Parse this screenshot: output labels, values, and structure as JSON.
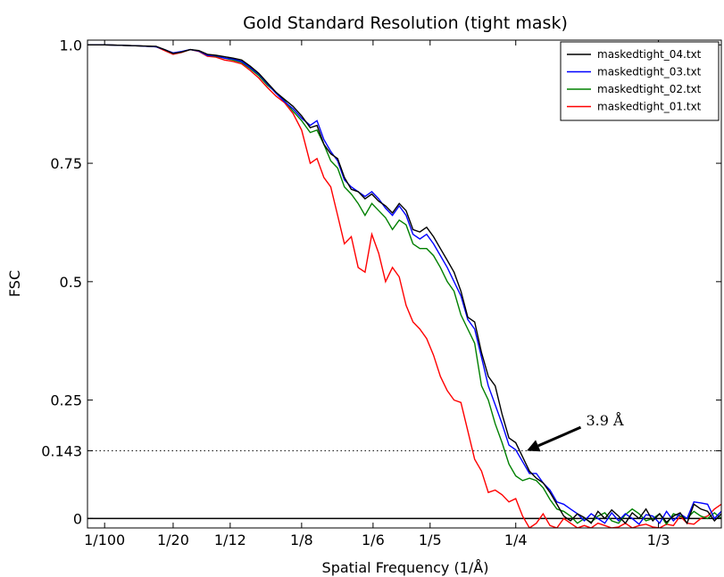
{
  "chart_data": {
    "type": "line",
    "title": "Gold Standard Resolution (tight mask)",
    "xlabel": "Spatial Frequency (1/Å)",
    "ylabel": "FSC",
    "xlim": [
      0.0,
      0.37
    ],
    "ylim": [
      -0.02,
      1.01
    ],
    "xticks": [
      {
        "value": 0.01,
        "label": "1/100"
      },
      {
        "value": 0.05,
        "label": "1/20"
      },
      {
        "value": 0.0833,
        "label": "1/12"
      },
      {
        "value": 0.125,
        "label": "1/8"
      },
      {
        "value": 0.1667,
        "label": "1/6"
      },
      {
        "value": 0.2,
        "label": "1/5"
      },
      {
        "value": 0.25,
        "label": "1/4"
      },
      {
        "value": 0.3333,
        "label": "1/3"
      }
    ],
    "yticks": [
      {
        "value": 0,
        "label": "0"
      },
      {
        "value": 0.143,
        "label": "0.143"
      },
      {
        "value": 0.25,
        "label": "0.25"
      },
      {
        "value": 0.5,
        "label": "0.5"
      },
      {
        "value": 0.75,
        "label": "0.75"
      },
      {
        "value": 1.0,
        "label": "1.0"
      }
    ],
    "threshold": 0.143,
    "zero_line": 0,
    "grid": false,
    "legend_position": "top-right",
    "annotation": {
      "text": "3.9 Å",
      "x": 0.2564,
      "y": 0.143,
      "text_x": 0.29,
      "text_y": 0.2
    },
    "series": [
      {
        "name": "maskedtight_04.txt",
        "color": "#000000",
        "x": [
          0.0,
          0.01,
          0.02,
          0.03,
          0.04,
          0.045,
          0.05,
          0.055,
          0.06,
          0.065,
          0.07,
          0.075,
          0.08,
          0.085,
          0.09,
          0.095,
          0.1,
          0.105,
          0.11,
          0.115,
          0.12,
          0.125,
          0.13,
          0.134,
          0.138,
          0.142,
          0.146,
          0.15,
          0.154,
          0.158,
          0.162,
          0.166,
          0.17,
          0.174,
          0.178,
          0.182,
          0.186,
          0.19,
          0.194,
          0.198,
          0.202,
          0.206,
          0.21,
          0.214,
          0.218,
          0.222,
          0.226,
          0.23,
          0.234,
          0.238,
          0.242,
          0.246,
          0.25,
          0.254,
          0.258,
          0.262,
          0.266,
          0.27,
          0.274,
          0.278,
          0.282,
          0.286,
          0.29,
          0.294,
          0.298,
          0.302,
          0.306,
          0.31,
          0.314,
          0.318,
          0.322,
          0.326,
          0.33,
          0.334,
          0.338,
          0.342,
          0.346,
          0.35,
          0.354,
          0.358,
          0.362,
          0.366,
          0.37
        ],
        "y": [
          1.0,
          1.0,
          0.999,
          0.998,
          0.997,
          0.99,
          0.982,
          0.985,
          0.99,
          0.988,
          0.98,
          0.978,
          0.975,
          0.972,
          0.968,
          0.955,
          0.94,
          0.92,
          0.9,
          0.885,
          0.87,
          0.85,
          0.825,
          0.83,
          0.79,
          0.77,
          0.76,
          0.72,
          0.695,
          0.69,
          0.675,
          0.685,
          0.67,
          0.66,
          0.645,
          0.665,
          0.65,
          0.61,
          0.605,
          0.615,
          0.595,
          0.57,
          0.545,
          0.52,
          0.48,
          0.425,
          0.415,
          0.35,
          0.3,
          0.28,
          0.22,
          0.17,
          0.16,
          0.13,
          0.1,
          0.085,
          0.075,
          0.055,
          0.03,
          0.005,
          -0.005,
          0.01,
          0.002,
          -0.01,
          0.015,
          0.0,
          0.018,
          0.005,
          -0.01,
          0.012,
          0.0,
          0.02,
          -0.005,
          0.01,
          -0.008,
          0.005,
          0.012,
          -0.01,
          0.03,
          0.02,
          0.015,
          -0.005,
          0.01
        ]
      },
      {
        "name": "maskedtight_03.txt",
        "color": "#0000ff",
        "x": [
          0.0,
          0.01,
          0.02,
          0.03,
          0.04,
          0.045,
          0.05,
          0.055,
          0.06,
          0.065,
          0.07,
          0.075,
          0.08,
          0.085,
          0.09,
          0.095,
          0.1,
          0.105,
          0.11,
          0.115,
          0.12,
          0.125,
          0.13,
          0.134,
          0.138,
          0.142,
          0.146,
          0.15,
          0.154,
          0.158,
          0.162,
          0.166,
          0.17,
          0.174,
          0.178,
          0.182,
          0.186,
          0.19,
          0.194,
          0.198,
          0.202,
          0.206,
          0.21,
          0.214,
          0.218,
          0.222,
          0.226,
          0.23,
          0.234,
          0.238,
          0.242,
          0.246,
          0.25,
          0.254,
          0.258,
          0.262,
          0.266,
          0.27,
          0.274,
          0.278,
          0.282,
          0.286,
          0.29,
          0.294,
          0.298,
          0.302,
          0.306,
          0.31,
          0.314,
          0.318,
          0.322,
          0.326,
          0.33,
          0.334,
          0.338,
          0.342,
          0.346,
          0.35,
          0.354,
          0.358,
          0.362,
          0.366,
          0.37
        ],
        "y": [
          1.0,
          1.0,
          0.999,
          0.998,
          0.996,
          0.99,
          0.983,
          0.986,
          0.99,
          0.987,
          0.978,
          0.977,
          0.972,
          0.97,
          0.965,
          0.952,
          0.938,
          0.918,
          0.898,
          0.88,
          0.865,
          0.845,
          0.83,
          0.84,
          0.8,
          0.775,
          0.755,
          0.715,
          0.7,
          0.69,
          0.68,
          0.69,
          0.675,
          0.655,
          0.64,
          0.66,
          0.64,
          0.6,
          0.59,
          0.6,
          0.58,
          0.555,
          0.53,
          0.5,
          0.47,
          0.42,
          0.4,
          0.34,
          0.28,
          0.24,
          0.2,
          0.155,
          0.145,
          0.12,
          0.095,
          0.095,
          0.075,
          0.06,
          0.035,
          0.03,
          0.02,
          0.01,
          -0.005,
          0.01,
          0.0,
          -0.01,
          0.012,
          -0.005,
          0.01,
          0.0,
          -0.012,
          0.008,
          0.005,
          -0.01,
          0.015,
          -0.005,
          0.01,
          0.0,
          0.035,
          0.033,
          0.03,
          0.0,
          0.015
        ]
      },
      {
        "name": "maskedtight_02.txt",
        "color": "#008000",
        "x": [
          0.0,
          0.01,
          0.02,
          0.03,
          0.04,
          0.045,
          0.05,
          0.055,
          0.06,
          0.065,
          0.07,
          0.075,
          0.08,
          0.085,
          0.09,
          0.095,
          0.1,
          0.105,
          0.11,
          0.115,
          0.12,
          0.125,
          0.13,
          0.134,
          0.138,
          0.142,
          0.146,
          0.15,
          0.154,
          0.158,
          0.162,
          0.166,
          0.17,
          0.174,
          0.178,
          0.182,
          0.186,
          0.19,
          0.194,
          0.198,
          0.202,
          0.206,
          0.21,
          0.214,
          0.218,
          0.222,
          0.226,
          0.23,
          0.234,
          0.238,
          0.242,
          0.246,
          0.25,
          0.254,
          0.258,
          0.262,
          0.266,
          0.27,
          0.274,
          0.278,
          0.282,
          0.286,
          0.29,
          0.294,
          0.298,
          0.302,
          0.306,
          0.31,
          0.314,
          0.318,
          0.322,
          0.326,
          0.33,
          0.334,
          0.338,
          0.342,
          0.346,
          0.35,
          0.354,
          0.358,
          0.362,
          0.366,
          0.37
        ],
        "y": [
          1.0,
          1.0,
          0.999,
          0.998,
          0.996,
          0.99,
          0.982,
          0.985,
          0.99,
          0.987,
          0.978,
          0.976,
          0.972,
          0.968,
          0.963,
          0.95,
          0.935,
          0.915,
          0.9,
          0.882,
          0.86,
          0.84,
          0.815,
          0.82,
          0.79,
          0.755,
          0.74,
          0.7,
          0.685,
          0.665,
          0.64,
          0.665,
          0.65,
          0.635,
          0.61,
          0.63,
          0.62,
          0.58,
          0.57,
          0.57,
          0.555,
          0.53,
          0.5,
          0.48,
          0.43,
          0.4,
          0.37,
          0.28,
          0.25,
          0.2,
          0.16,
          0.115,
          0.09,
          0.08,
          0.085,
          0.08,
          0.065,
          0.04,
          0.02,
          0.015,
          0.005,
          -0.01,
          0.0,
          -0.008,
          0.005,
          0.012,
          -0.005,
          -0.01,
          0.008,
          0.02,
          0.01,
          -0.005,
          0.0,
          0.01,
          -0.012,
          0.01,
          0.005,
          0.0,
          0.015,
          0.005,
          0.0,
          0.012,
          0.0
        ]
      },
      {
        "name": "maskedtight_01.txt",
        "color": "#ff0000",
        "x": [
          0.0,
          0.01,
          0.02,
          0.03,
          0.04,
          0.045,
          0.05,
          0.055,
          0.06,
          0.065,
          0.07,
          0.075,
          0.08,
          0.085,
          0.09,
          0.095,
          0.1,
          0.105,
          0.11,
          0.115,
          0.12,
          0.125,
          0.13,
          0.134,
          0.138,
          0.142,
          0.146,
          0.15,
          0.154,
          0.158,
          0.162,
          0.166,
          0.17,
          0.174,
          0.178,
          0.182,
          0.186,
          0.19,
          0.194,
          0.198,
          0.202,
          0.206,
          0.21,
          0.214,
          0.218,
          0.222,
          0.226,
          0.23,
          0.234,
          0.238,
          0.242,
          0.246,
          0.25,
          0.254,
          0.258,
          0.262,
          0.266,
          0.27,
          0.274,
          0.278,
          0.282,
          0.286,
          0.29,
          0.294,
          0.298,
          0.302,
          0.306,
          0.31,
          0.314,
          0.318,
          0.322,
          0.326,
          0.33,
          0.334,
          0.338,
          0.342,
          0.346,
          0.35,
          0.354,
          0.358,
          0.362,
          0.366,
          0.37
        ],
        "y": [
          1.0,
          1.0,
          0.999,
          0.998,
          0.996,
          0.988,
          0.98,
          0.984,
          0.99,
          0.986,
          0.976,
          0.974,
          0.968,
          0.965,
          0.96,
          0.946,
          0.93,
          0.91,
          0.892,
          0.878,
          0.855,
          0.82,
          0.75,
          0.76,
          0.72,
          0.7,
          0.64,
          0.58,
          0.595,
          0.53,
          0.52,
          0.6,
          0.56,
          0.5,
          0.53,
          0.51,
          0.45,
          0.415,
          0.4,
          0.38,
          0.345,
          0.3,
          0.27,
          0.25,
          0.245,
          0.185,
          0.125,
          0.1,
          0.055,
          0.06,
          0.05,
          0.035,
          0.042,
          0.005,
          -0.02,
          -0.01,
          0.01,
          -0.015,
          -0.02,
          0.0,
          -0.01,
          -0.02,
          -0.015,
          -0.02,
          -0.01,
          -0.015,
          -0.02,
          -0.018,
          -0.01,
          -0.02,
          -0.015,
          -0.012,
          -0.018,
          -0.02,
          -0.012,
          -0.015,
          0.005,
          -0.01,
          -0.012,
          0.0,
          0.005,
          0.02,
          0.03
        ]
      }
    ]
  }
}
